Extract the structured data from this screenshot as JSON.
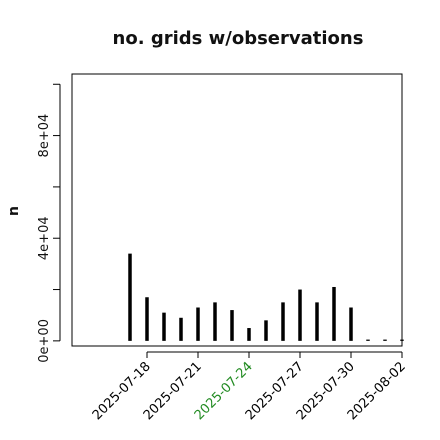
{
  "chart_data": {
    "type": "bar",
    "title": "no. grids w/observations",
    "xlabel": "",
    "ylabel": "n",
    "x": [
      "2025-07-17",
      "2025-07-18",
      "2025-07-19",
      "2025-07-20",
      "2025-07-21",
      "2025-07-22",
      "2025-07-23",
      "2025-07-24",
      "2025-07-25",
      "2025-07-26",
      "2025-07-27",
      "2025-07-28",
      "2025-07-29",
      "2025-07-30",
      "2025-07-31",
      "2025-08-01",
      "2025-08-02"
    ],
    "values": [
      34000,
      17000,
      11000,
      9000,
      13000,
      15000,
      12000,
      5000,
      8000,
      15000,
      20000,
      15000,
      21000,
      13000,
      500,
      500,
      500
    ],
    "ylim": [
      -2000,
      104000
    ],
    "yticks": [
      0,
      40000,
      80000
    ],
    "ytick_labels": [
      "0e+00",
      "4e+04",
      "8e+04"
    ],
    "xtick_labels": [
      {
        "label": "2025-07-18",
        "color": "#000000"
      },
      {
        "label": "2025-07-21",
        "color": "#000000"
      },
      {
        "label": "2025-07-24",
        "color": "#228b22"
      },
      {
        "label": "2025-07-27",
        "color": "#000000"
      },
      {
        "label": "2025-07-30",
        "color": "#000000"
      },
      {
        "label": "2025-08-02",
        "color": "#000000"
      }
    ],
    "bar_color": "#000000",
    "grid": false,
    "legend": "none"
  }
}
